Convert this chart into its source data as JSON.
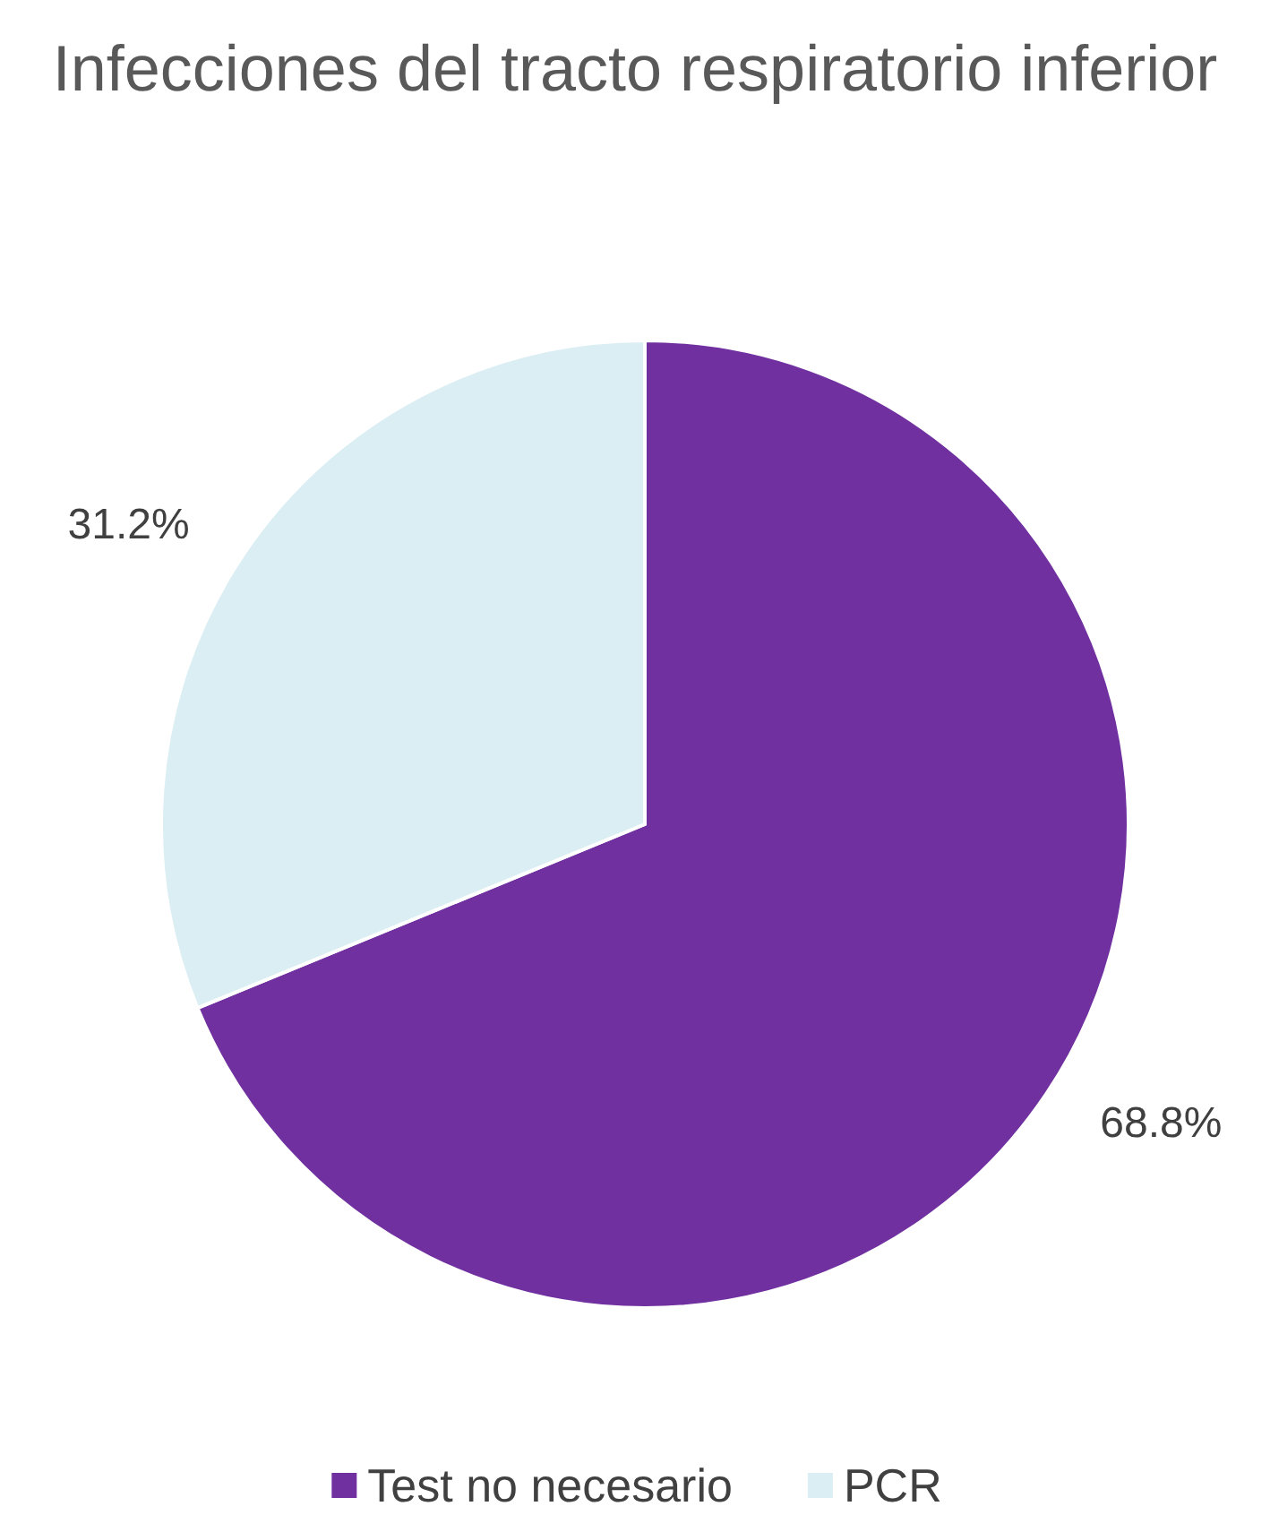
{
  "chart_data": {
    "type": "pie",
    "title": "Infecciones del tracto respiratorio inferior",
    "categories": [
      "Test no necesario",
      "PCR"
    ],
    "values": [
      68.8,
      31.2
    ],
    "colors": [
      "#7030a0",
      "#daeef3"
    ],
    "value_labels": [
      "68.8%",
      "31.2%"
    ],
    "legend": "bottom"
  }
}
